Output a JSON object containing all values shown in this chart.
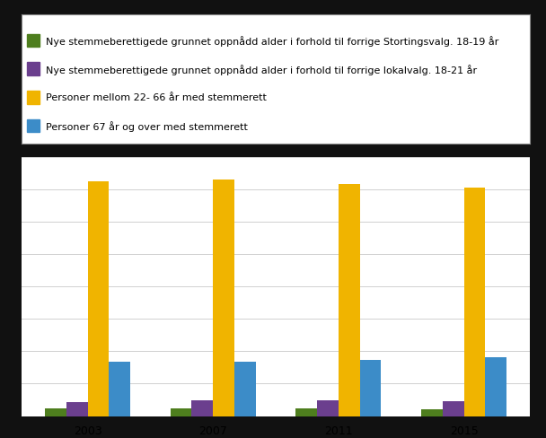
{
  "legend_labels": [
    "Nye stemmeberettigede grunnet oppnådd alder i forhold til forrige Stortingsvalg. 18-19 år",
    "Nye stemmeberettigede grunnet oppnådd alder i forhold til forrige lokalvalg. 18-21 år",
    "Personer mellom 22- 66 år med stemmerett",
    "Personer 67 år og over med stemmerett"
  ],
  "colors": [
    "#4e7e1e",
    "#6b3f8e",
    "#f0b400",
    "#3c8cc8"
  ],
  "groups": [
    "2003",
    "2007",
    "2011",
    "2015"
  ],
  "green": [
    90000,
    95000,
    92000,
    88000
  ],
  "purple": [
    175000,
    190000,
    195000,
    185000
  ],
  "yellow": [
    2900000,
    2920000,
    2870000,
    2820000
  ],
  "blue": [
    670000,
    670000,
    695000,
    730000
  ],
  "ylim": [
    0,
    3200000
  ],
  "bar_width": 0.17,
  "outer_bg": "#111111",
  "plot_bg": "#ffffff",
  "legend_bg": "#ffffff",
  "grid_color": "#d0d0d0",
  "n_gridlines": 8
}
